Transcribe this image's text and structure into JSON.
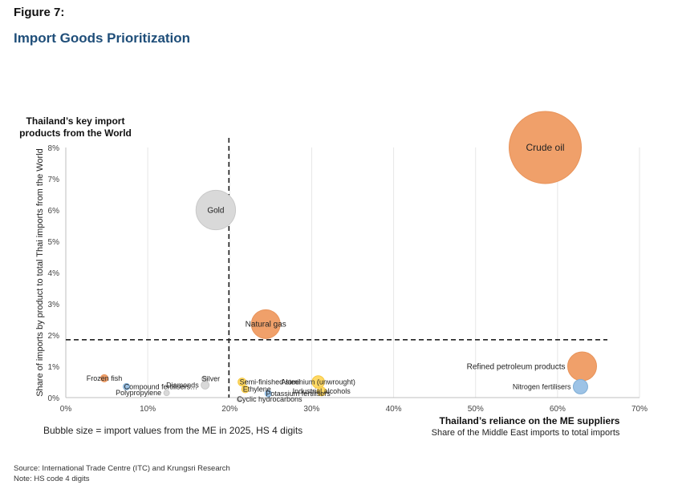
{
  "header": {
    "figure_label": "Figure 7:",
    "title": "Import Goods Prioritization"
  },
  "notes": {
    "bubble_size": "Bubble size = import values from the ME in 2025, HS 4 digits",
    "source": "Source: International Trade Centre (ITC) and Krungsri Research",
    "note": "Note: HS code 4 digits"
  },
  "colors": {
    "orange": "#F0A06A",
    "orange_stroke": "#E8935A",
    "gray": "#D9D9D9",
    "gray_stroke": "#C8C8C8",
    "yellow": "#FFD966",
    "blue": "#9DC3E6"
  },
  "chart_data": {
    "type": "scatter",
    "subtype": "bubble",
    "title_y_line1": "Thailand’s key import",
    "title_y_line2": "products from the World",
    "ylabel": "Share of imports by product to total Thai imports from the World",
    "xlabel": "Thailand’s reliance on the ME suppliers",
    "xlabel_sub": "Share of the Middle East imports to total imports",
    "xlim": [
      0,
      70
    ],
    "ylim": [
      0,
      8
    ],
    "x_ticks": [
      "0%",
      "10%",
      "20%",
      "30%",
      "40%",
      "50%",
      "60%",
      "70%"
    ],
    "y_ticks": [
      "0%",
      "1%",
      "2%",
      "3%",
      "4%",
      "5%",
      "6%",
      "7%",
      "8%"
    ],
    "x_threshold": 20,
    "y_threshold": 1.85,
    "grid": "vertical",
    "points": [
      {
        "label": "Crude oil",
        "x": 58.5,
        "y": 8.0,
        "size": 100,
        "color": "orange",
        "label_pos": "center"
      },
      {
        "label": "Gold",
        "x": 18.3,
        "y": 6.0,
        "size": 30,
        "color": "gray",
        "label_pos": "center"
      },
      {
        "label": "Natural gas",
        "x": 24.4,
        "y": 2.35,
        "size": 16,
        "color": "orange",
        "label_pos": "center"
      },
      {
        "label": "Refined petroleum products",
        "x": 63.0,
        "y": 1.0,
        "size": 16,
        "color": "orange",
        "label_pos": "left"
      },
      {
        "label": "Nitrogen fertilisers",
        "x": 62.8,
        "y": 0.35,
        "size": 4,
        "color": "blue",
        "label_pos": "left"
      },
      {
        "label": "Aluminium (unwrought)",
        "x": 30.8,
        "y": 0.5,
        "size": 3,
        "color": "yellow",
        "label_pos": "center"
      },
      {
        "label": "Industrial alcohols",
        "x": 31.2,
        "y": 0.2,
        "size": 1.5,
        "color": "yellow",
        "label_pos": "center"
      },
      {
        "label": "Semi-finished steel",
        "x": 21.5,
        "y": 0.5,
        "size": 1.2,
        "color": "yellow",
        "label_pos": "right"
      },
      {
        "label": "Ethylene",
        "x": 21.9,
        "y": 0.27,
        "size": 1,
        "color": "yellow",
        "label_pos": "right"
      },
      {
        "label": "Potassium fertilisers",
        "x": 24.7,
        "y": 0.13,
        "size": 0.8,
        "color": "blue",
        "label_pos": "right"
      },
      {
        "label": "Cyclic hydrocarbons",
        "x": 21.2,
        "y": -0.05,
        "size": 0.6,
        "color": "gray",
        "label_pos": "right"
      },
      {
        "label": "Silver",
        "x": 16.9,
        "y": 0.6,
        "size": 0.6,
        "color": "gray",
        "label_pos": "right"
      },
      {
        "label": "Diamonds",
        "x": 17.0,
        "y": 0.4,
        "size": 1.2,
        "color": "gray",
        "label_pos": "left"
      },
      {
        "label": "Frozen fish",
        "x": 4.7,
        "y": 0.62,
        "size": 1,
        "color": "orange",
        "label_pos": "center"
      },
      {
        "label": "Compound fertilisers…",
        "x": 7.4,
        "y": 0.35,
        "size": 0.8,
        "color": "blue",
        "label_pos": "right"
      },
      {
        "label": "Polypropylene",
        "x": 12.3,
        "y": 0.15,
        "size": 0.6,
        "color": "gray",
        "label_pos": "left"
      }
    ]
  }
}
